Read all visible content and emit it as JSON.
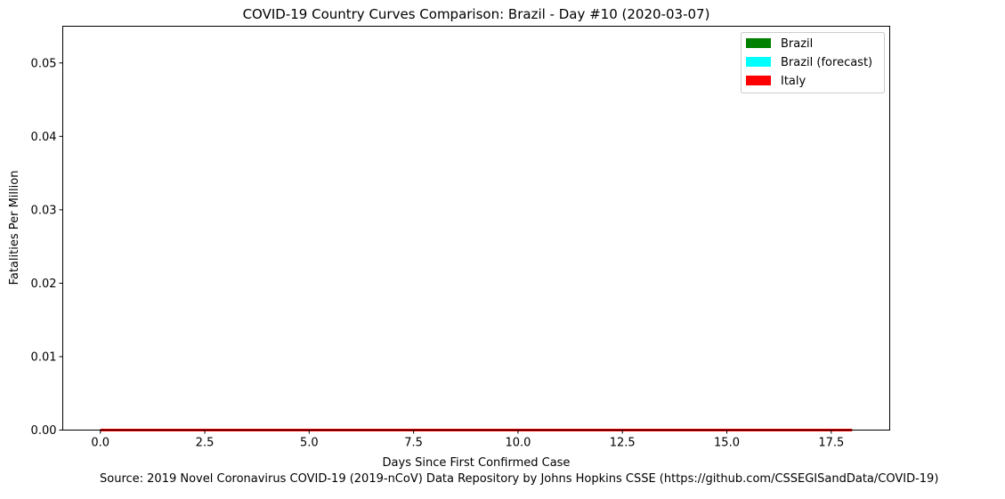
{
  "chart_data": {
    "type": "area",
    "title": "COVID-19 Country Curves Comparison: Brazil - Day #10 (2020-03-07)",
    "xlabel": "Days Since First Confirmed Case",
    "ylabel": "Fatalities Per Million",
    "xlim": [
      -0.9,
      18.9
    ],
    "ylim": [
      0,
      0.055
    ],
    "xticks": [
      "0.0",
      "2.5",
      "5.0",
      "7.5",
      "10.0",
      "12.5",
      "15.0",
      "17.5"
    ],
    "xtick_values": [
      0,
      2.5,
      5,
      7.5,
      10,
      12.5,
      15,
      17.5
    ],
    "yticks": [
      "0.00",
      "0.01",
      "0.02",
      "0.03",
      "0.04",
      "0.05"
    ],
    "ytick_values": [
      0,
      0.01,
      0.02,
      0.03,
      0.04,
      0.05
    ],
    "legend_position": "top-right",
    "grid": false,
    "series": [
      {
        "name": "Brazil",
        "color": "#008000",
        "x": [
          0,
          1,
          2,
          3,
          4,
          5,
          6,
          7,
          8,
          9,
          10
        ],
        "values": [
          0,
          0,
          0,
          0,
          0,
          0,
          0,
          0,
          0,
          0,
          0
        ]
      },
      {
        "name": "Brazil (forecast)",
        "color": "#00ffff",
        "x": [
          10,
          11,
          12,
          13,
          14,
          15,
          16,
          17,
          18
        ],
        "values": [
          0,
          0,
          0,
          0,
          0,
          0,
          0,
          0,
          0
        ]
      },
      {
        "name": "Italy",
        "color": "#ff0000",
        "x": [
          0,
          1,
          2,
          3,
          4,
          5,
          6,
          7,
          8,
          9,
          10,
          11,
          12,
          13,
          14,
          15,
          16,
          17,
          18
        ],
        "values": [
          0,
          0,
          0,
          0,
          0,
          0,
          0,
          0,
          0,
          0,
          0,
          0,
          0,
          0,
          0,
          0,
          0,
          0,
          0
        ]
      }
    ]
  },
  "source_text": "Source: 2019 Novel Coronavirus COVID-19 (2019-nCoV) Data Repository by Johns Hopkins CSSE (https://github.com/CSSEGISandData/COVID-19)"
}
